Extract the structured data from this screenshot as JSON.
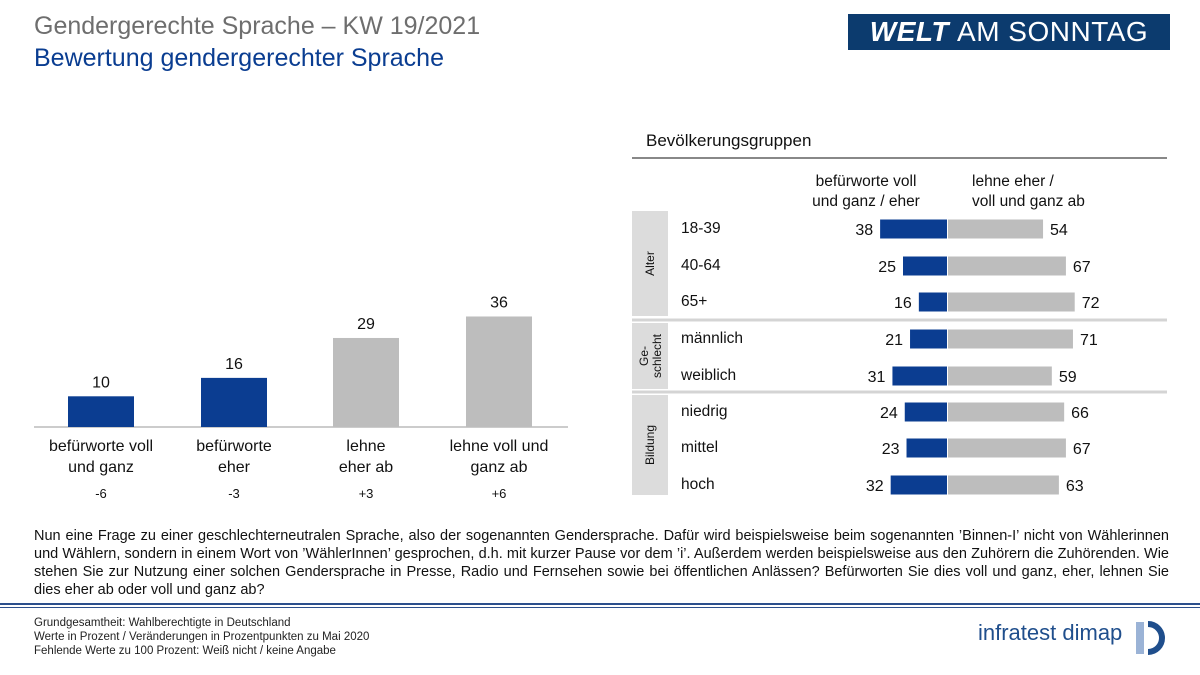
{
  "header": {
    "title": "Gendergerechte Sprache – KW 19/2021",
    "subtitle": "Bewertung gendergerechter Sprache",
    "brand_bold": "WELT",
    "brand_rest": "AM SONNTAG"
  },
  "colors": {
    "blue": "#0b3d91",
    "gray": "#bdbdbd"
  },
  "chart_data": [
    {
      "type": "bar",
      "title": "Bewertung gendergerechter Sprache",
      "categories": [
        [
          "befürworte voll",
          "und ganz"
        ],
        [
          "befürworte",
          "eher"
        ],
        [
          "lehne",
          "eher ab"
        ],
        [
          "lehne voll und",
          "ganz ab"
        ]
      ],
      "values": [
        10,
        16,
        29,
        36
      ],
      "changes": [
        "-6",
        "-3",
        "+3",
        "+6"
      ],
      "bar_colors": [
        "blue",
        "blue",
        "gray",
        "gray"
      ],
      "ylim": [
        0,
        40
      ]
    },
    {
      "type": "bar",
      "orientation": "diverging-horizontal",
      "title": "Bevölkerungsgruppen",
      "series_labels": {
        "left": [
          "befürworte voll",
          "und ganz / eher"
        ],
        "right": [
          "lehne eher /",
          "voll und ganz ab"
        ]
      },
      "groups": [
        {
          "name": "Alter",
          "rows": [
            {
              "label": "18-39",
              "left": 38,
              "right": 54
            },
            {
              "label": "40-64",
              "left": 25,
              "right": 67
            },
            {
              "label": "65+",
              "left": 16,
              "right": 72
            }
          ]
        },
        {
          "name": "Ge-schlecht",
          "name_lines": [
            "Ge-",
            "schlecht"
          ],
          "rows": [
            {
              "label": "männlich",
              "left": 21,
              "right": 71
            },
            {
              "label": "weiblich",
              "left": 31,
              "right": 59
            }
          ]
        },
        {
          "name": "Bildung",
          "rows": [
            {
              "label": "niedrig",
              "left": 24,
              "right": 66
            },
            {
              "label": "mittel",
              "left": 23,
              "right": 67
            },
            {
              "label": "hoch",
              "left": 32,
              "right": 63
            }
          ]
        }
      ]
    }
  ],
  "question": "Nun eine Frage zu einer geschlechterneutralen Sprache, also der sogenannten Gendersprache. Dafür wird beispielsweise beim sogenannten ’Binnen-I’ nicht von Wählerinnen und Wählern, sondern in einem Wort von ’WählerInnen’ gesprochen, d.h. mit kurzer Pause vor dem ’i’. Außerdem werden beispielsweise aus den Zuhörern die Zuhörenden. Wie stehen Sie zur Nutzung einer solchen Gendersprache in Presse, Radio und Fernsehen sowie bei öffentlichen Anlässen? Befürworten Sie dies voll und ganz, eher, lehnen Sie dies eher ab oder voll und ganz ab?",
  "footer": {
    "lines": [
      "Grundgesamtheit: Wahlberechtigte in Deutschland",
      "Werte in Prozent / Veränderungen in Prozentpunkten zu Mai 2020",
      "Fehlende Werte zu 100 Prozent: Weiß nicht / keine Angabe"
    ],
    "logo": "infratest dimap"
  }
}
